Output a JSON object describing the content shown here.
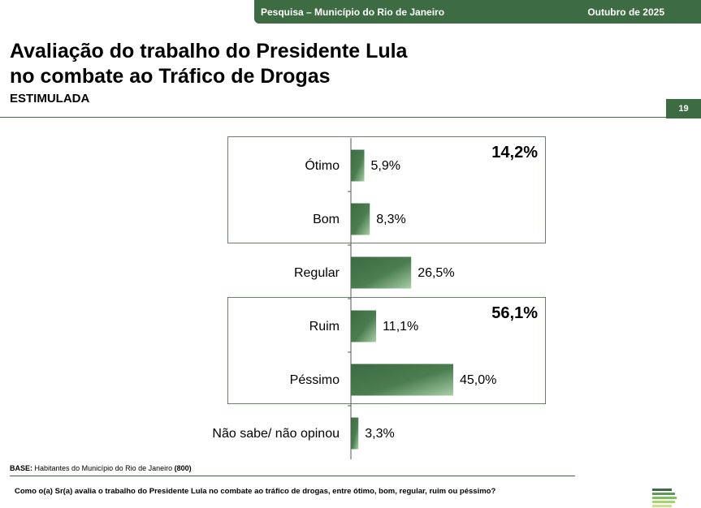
{
  "header": {
    "survey": "Pesquisa – Município do Rio de Janeiro",
    "date": "Outubro de 2025",
    "page_number": "19"
  },
  "title_line1": "Avaliação do trabalho do Presidente Lula",
  "title_line2": "no combate ao Tráfico de Drogas",
  "subtitle": "ESTIMULADA",
  "footer": {
    "base_label": "BASE:",
    "base_text": "Habitantes do Município do Rio de Janeiro",
    "base_n": "(800)",
    "question": "Como o(a) Sr(a) avalia o trabalho do Presidente Lula no combate ao tráfico de drogas, entre ótimo, bom, regular, ruim ou péssimo?"
  },
  "colors": {
    "bar_dark": "#3d6b42",
    "bar_light": "#a8cfa8",
    "accent": "#3d6b42"
  },
  "chart_data": {
    "type": "bar",
    "orientation": "horizontal",
    "categories": [
      "Ótimo",
      "Bom",
      "Regular",
      "Ruim",
      "Péssimo",
      "Não sabe/ não opinou"
    ],
    "values": [
      5.9,
      8.3,
      26.5,
      11.1,
      45.0,
      3.3
    ],
    "value_labels": [
      "5,9%",
      "8,3%",
      "26,5%",
      "11,1%",
      "45,0%",
      "3,3%"
    ],
    "xlim": [
      0,
      100
    ],
    "groups": [
      {
        "label": "14,2%",
        "categories": [
          "Ótimo",
          "Bom"
        ]
      },
      {
        "label": "56,1%",
        "categories": [
          "Ruim",
          "Péssimo"
        ]
      }
    ]
  }
}
